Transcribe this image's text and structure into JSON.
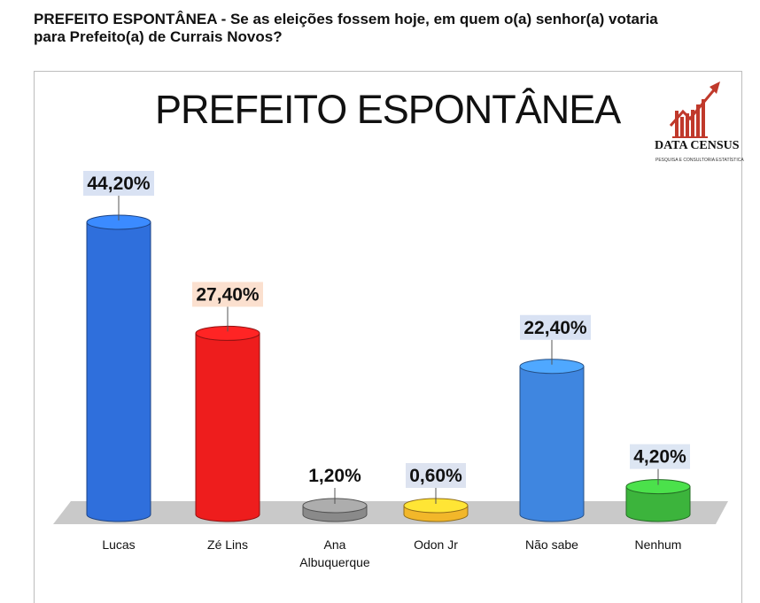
{
  "header": {
    "question_line1": "PREFEITO ESPONTÂNEA - Se as eleições fossem hoje, em quem o(a) senhor(a) votaria",
    "question_line2": "para Prefeito(a) de Currais Novos?"
  },
  "logo": {
    "name": "DATA CENSUS",
    "tagline": "PESQUISA E CONSULTORIA ESTATÍSTICA",
    "icon": "bar-chart-rising-arrow-icon",
    "color": "#c0392b"
  },
  "chart_data": {
    "type": "bar",
    "title": "PREFEITO ESPONTÂNEA",
    "categories": [
      "Lucas",
      "Zé Lins",
      "Ana Albuquerque",
      "Odon Jr",
      "Não sabe",
      "Nenhum"
    ],
    "category_lines": [
      [
        "Lucas"
      ],
      [
        "Zé Lins"
      ],
      [
        "Ana",
        "Albuquerque"
      ],
      [
        "Odon Jr"
      ],
      [
        "Não sabe"
      ],
      [
        "Nenhum"
      ]
    ],
    "values": [
      44.2,
      27.4,
      1.2,
      0.6,
      22.4,
      4.2
    ],
    "value_labels": [
      "44,20%",
      "27,40%",
      "1,20%",
      "0,60%",
      "22,40%",
      "4,20%"
    ],
    "colors": [
      "#2f6fdc",
      "#ee1d1d",
      "#8a8a8a",
      "#f2b72a",
      "#3f86e0",
      "#3cb43c"
    ],
    "label_bg": [
      "#d9e2f3",
      "#fbe0cf",
      "#ffffff",
      "#dde3f0",
      "#d9e2f3",
      "#dde6f3"
    ],
    "ylim": [
      0,
      50
    ],
    "xlabel": "",
    "ylabel": "",
    "grid": false,
    "legend": "none"
  }
}
